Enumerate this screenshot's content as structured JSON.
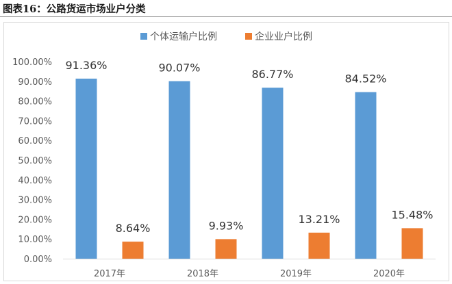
{
  "figure": {
    "title": "图表16：公路货运市场业户分类"
  },
  "chart_data": {
    "type": "bar",
    "title": "",
    "xlabel": "",
    "ylabel": "",
    "categories": [
      "2017年",
      "2018年",
      "2019年",
      "2020年"
    ],
    "series": [
      {
        "name": "个体运输户比例",
        "color": "#5b9bd5",
        "values": [
          91.36,
          90.07,
          86.77,
          84.52
        ],
        "labels": [
          "91.36%",
          "90.07%",
          "86.77%",
          "84.52%"
        ]
      },
      {
        "name": "企业业户比例",
        "color": "#ed7d31",
        "values": [
          8.64,
          9.93,
          13.21,
          15.48
        ],
        "labels": [
          "8.64%",
          "9.93%",
          "13.21%",
          "15.48%"
        ]
      }
    ],
    "ylim": [
      0,
      100
    ],
    "yticks": [
      0,
      10,
      20,
      30,
      40,
      50,
      60,
      70,
      80,
      90,
      100
    ],
    "ytick_labels": [
      "0.00%",
      "10.00%",
      "20.00%",
      "30.00%",
      "40.00%",
      "50.00%",
      "60.00%",
      "70.00%",
      "80.00%",
      "90.00%",
      "100.00%"
    ],
    "grid": false,
    "legend_position": "top"
  }
}
